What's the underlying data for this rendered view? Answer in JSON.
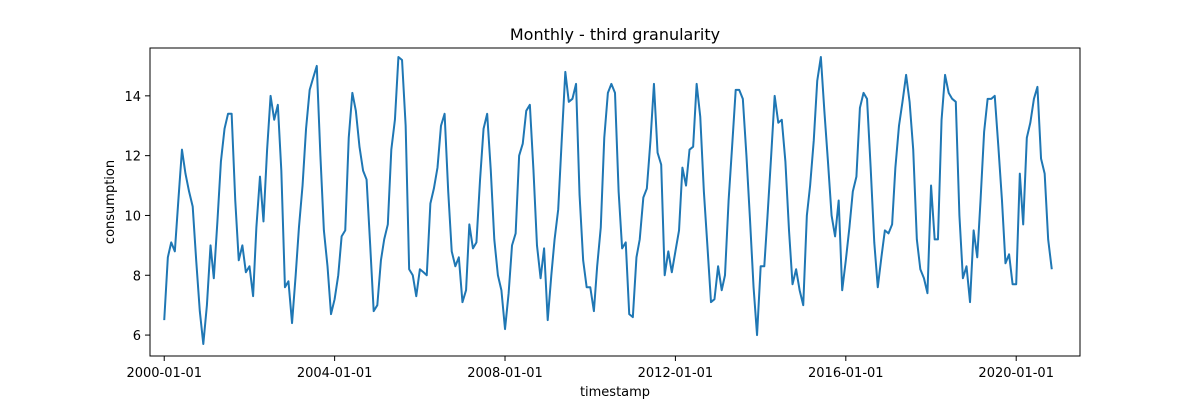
{
  "chart_data": {
    "type": "line",
    "title": "Monthly - third granularity",
    "xlabel": "timestamp",
    "ylabel": "consumption",
    "x_start": "2000-01",
    "x_end": "2020-12",
    "xlim": [
      "1999-09-01",
      "2021-07-01"
    ],
    "ylim": [
      5.3,
      15.6
    ],
    "x_ticks": [
      "2000-01-01",
      "2004-01-01",
      "2008-01-01",
      "2012-01-01",
      "2016-01-01",
      "2020-01-01"
    ],
    "y_ticks": [
      6,
      8,
      10,
      12,
      14
    ],
    "grid": false,
    "line_color": "#1f77b4",
    "series": [
      {
        "values": [
          6.5,
          8.6,
          9.1,
          8.8,
          10.5,
          12.2,
          11.4,
          10.8,
          10.3,
          8.5,
          6.8,
          5.7,
          7.0,
          9.0,
          7.9,
          9.8,
          11.8,
          12.9,
          13.4,
          13.4,
          10.5,
          8.5,
          9.0,
          8.1,
          8.3,
          7.3,
          9.6,
          11.3,
          9.8,
          12.2,
          14.0,
          13.2,
          13.7,
          11.5,
          7.6,
          7.8,
          6.4,
          8.0,
          9.6,
          11.0,
          12.9,
          14.2,
          14.6,
          15.0,
          12.0,
          9.5,
          8.3,
          6.7,
          7.2,
          8.0,
          9.3,
          9.5,
          12.6,
          14.1,
          13.5,
          12.3,
          11.5,
          11.2,
          9.0,
          6.8,
          7.0,
          8.5,
          9.2,
          9.7,
          12.2,
          13.2,
          15.3,
          15.2,
          13.0,
          8.2,
          8.0,
          7.3,
          8.2,
          8.1,
          8.0,
          10.4,
          10.9,
          11.6,
          13.0,
          13.4,
          10.8,
          8.8,
          8.3,
          8.6,
          7.1,
          7.5,
          9.7,
          8.9,
          9.1,
          11.2,
          12.9,
          13.4,
          11.5,
          9.2,
          8.0,
          7.5,
          6.2,
          7.4,
          9.0,
          9.4,
          12.0,
          12.4,
          13.5,
          13.7,
          11.5,
          9.0,
          7.9,
          8.9,
          6.5,
          8.0,
          9.2,
          10.2,
          12.5,
          14.8,
          13.8,
          13.9,
          14.4,
          10.7,
          8.5,
          7.6,
          7.6,
          6.8,
          8.3,
          9.6,
          12.6,
          14.1,
          14.4,
          14.1,
          10.8,
          8.9,
          9.1,
          6.7,
          6.6,
          8.6,
          9.2,
          10.6,
          10.9,
          12.5,
          14.4,
          12.1,
          11.7,
          8.0,
          8.8,
          8.1,
          8.8,
          9.5,
          11.6,
          11.0,
          12.2,
          12.3,
          14.4,
          13.3,
          10.8,
          9.0,
          7.1,
          7.2,
          8.3,
          7.5,
          8.0,
          10.5,
          12.3,
          14.2,
          14.2,
          13.9,
          12.0,
          9.9,
          7.6,
          6.0,
          8.3,
          8.3,
          10.0,
          12.0,
          14.0,
          13.1,
          13.2,
          11.8,
          9.5,
          7.7,
          8.2,
          7.5,
          7.0,
          10.0,
          11.0,
          12.5,
          14.5,
          15.3,
          13.5,
          11.8,
          10.0,
          9.3,
          10.5,
          7.5,
          8.5,
          9.6,
          10.8,
          11.3,
          13.6,
          14.1,
          13.9,
          11.6,
          9.1,
          7.6,
          8.6,
          9.5,
          9.4,
          9.7,
          11.6,
          13.0,
          13.8,
          14.7,
          13.8,
          12.2,
          9.2,
          8.2,
          7.9,
          7.4,
          11.0,
          9.2,
          9.2,
          13.2,
          14.7,
          14.1,
          13.9,
          13.8,
          10.0,
          7.9,
          8.3,
          7.1,
          9.5,
          8.6,
          10.5,
          12.8,
          13.9,
          13.9,
          14.0,
          12.3,
          10.5,
          8.4,
          8.7,
          7.7,
          7.7,
          11.4,
          9.7,
          12.6,
          13.1,
          13.9,
          14.3,
          11.9,
          11.4,
          9.2,
          8.2
        ]
      }
    ]
  }
}
